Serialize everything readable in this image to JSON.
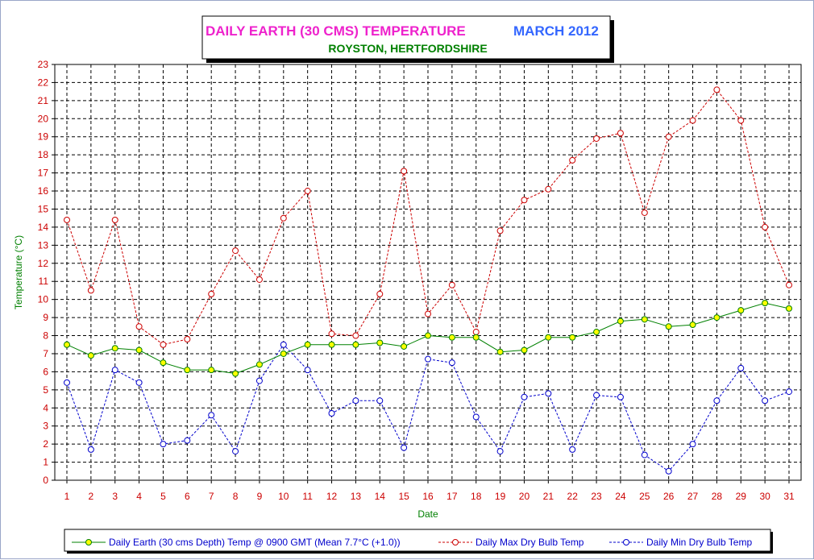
{
  "chart_data": {
    "type": "line",
    "title_main": "DAILY EARTH (30 CMS) TEMPERATURE",
    "title_period": "MARCH 2012",
    "subtitle": "ROYSTON, HERTFORDSHIRE",
    "xlabel": "Date",
    "ylabel": "Temperature (°C)",
    "categories": [
      "1",
      "2",
      "3",
      "4",
      "5",
      "6",
      "7",
      "8",
      "9",
      "10",
      "11",
      "12",
      "13",
      "14",
      "15",
      "16",
      "17",
      "18",
      "19",
      "20",
      "21",
      "22",
      "23",
      "24",
      "25",
      "26",
      "27",
      "28",
      "29",
      "30",
      "31"
    ],
    "yticks": [
      "0",
      "1",
      "2",
      "3",
      "4",
      "5",
      "6",
      "7",
      "8",
      "9",
      "10",
      "11",
      "12",
      "13",
      "14",
      "15",
      "16",
      "17",
      "18",
      "19",
      "20",
      "21",
      "22",
      "23"
    ],
    "ylim": [
      0,
      23
    ],
    "grid": true,
    "legend_position": "bottom",
    "series": [
      {
        "name": "Daily Earth (30 cms Depth) Temp @ 0900 GMT (Mean 7.7°C (+1.0))",
        "color": "#008000",
        "marker_fill": "#ffff00",
        "line_style": "solid",
        "values": [
          7.5,
          6.9,
          7.3,
          7.2,
          6.5,
          6.1,
          6.1,
          5.9,
          6.4,
          7.0,
          7.5,
          7.5,
          7.5,
          7.6,
          7.4,
          8.0,
          7.9,
          7.9,
          7.1,
          7.2,
          7.9,
          7.9,
          8.2,
          8.8,
          8.9,
          8.5,
          8.6,
          9.0,
          9.4,
          9.8,
          9.5
        ]
      },
      {
        "name": "Daily Max Dry Bulb Temp",
        "color": "#cc0000",
        "marker_fill": "#ffffff",
        "line_style": "dashed",
        "values": [
          14.4,
          10.5,
          14.4,
          8.5,
          7.5,
          7.8,
          10.3,
          12.7,
          11.1,
          14.5,
          16.0,
          8.1,
          8.0,
          10.3,
          17.1,
          9.2,
          10.8,
          8.2,
          13.8,
          15.5,
          16.1,
          17.7,
          18.9,
          19.2,
          14.8,
          19.0,
          19.9,
          21.6,
          19.9,
          14.0,
          10.8
        ]
      },
      {
        "name": "Daily Min Dry Bulb Temp",
        "color": "#0000cc",
        "marker_fill": "#ffffff",
        "line_style": "dashed",
        "values": [
          5.4,
          1.7,
          6.1,
          5.4,
          2.0,
          2.2,
          3.6,
          1.6,
          5.5,
          7.5,
          6.1,
          3.7,
          4.4,
          4.4,
          1.8,
          6.7,
          6.5,
          3.5,
          1.6,
          4.6,
          4.8,
          1.7,
          4.7,
          4.6,
          1.4,
          0.5,
          2.0,
          4.4,
          6.2,
          4.4,
          4.9
        ]
      }
    ]
  },
  "colors": {
    "title_main": "#ee22cc",
    "title_period": "#3366ff",
    "subtitle": "#008000",
    "axis_text": "#cc0000",
    "axis_title": "#008000",
    "legend_text": "#0000cc"
  }
}
